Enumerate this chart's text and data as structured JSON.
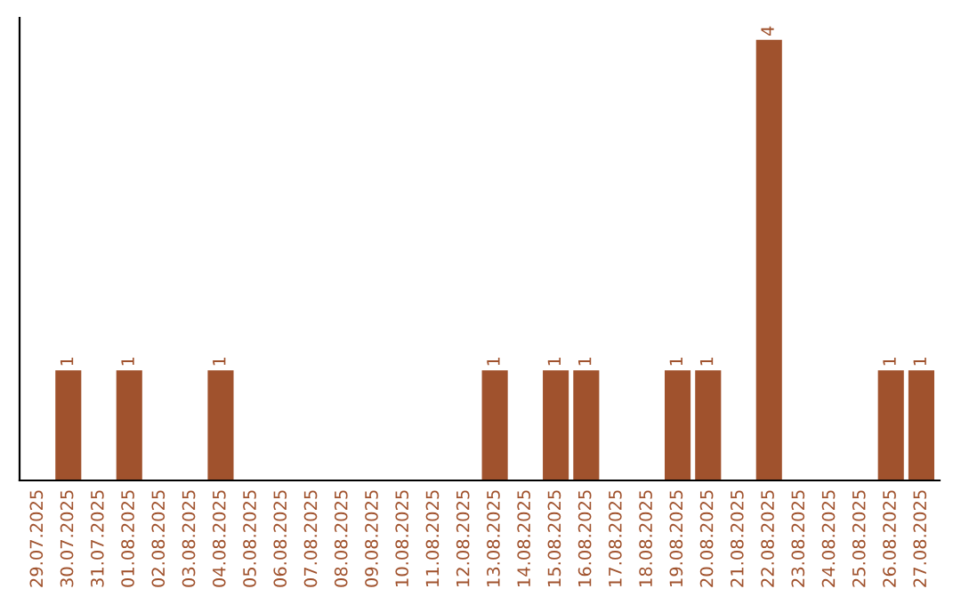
{
  "chart_data": {
    "type": "bar",
    "categories": [
      "29.07.2025",
      "30.07.2025",
      "31.07.2025",
      "01.08.2025",
      "02.08.2025",
      "03.08.2025",
      "04.08.2025",
      "05.08.2025",
      "06.08.2025",
      "07.08.2025",
      "08.08.2025",
      "09.08.2025",
      "10.08.2025",
      "11.08.2025",
      "12.08.2025",
      "13.08.2025",
      "14.08.2025",
      "15.08.2025",
      "16.08.2025",
      "17.08.2025",
      "18.08.2025",
      "19.08.2025",
      "20.08.2025",
      "21.08.2025",
      "22.08.2025",
      "23.08.2025",
      "24.08.2025",
      "25.08.2025",
      "26.08.2025",
      "27.08.2025"
    ],
    "values": [
      0,
      1,
      0,
      1,
      0,
      0,
      1,
      0,
      0,
      0,
      0,
      0,
      0,
      0,
      0,
      1,
      0,
      1,
      1,
      0,
      0,
      1,
      1,
      0,
      4,
      0,
      0,
      0,
      1,
      1
    ],
    "value_labels": [
      null,
      "1",
      null,
      "1",
      null,
      null,
      "1",
      null,
      null,
      null,
      null,
      null,
      null,
      null,
      null,
      "1",
      null,
      "1",
      "1",
      null,
      null,
      "1",
      "1",
      null,
      "4",
      null,
      null,
      null,
      "1",
      "1"
    ],
    "color": "#a0522d",
    "ylim": [
      0,
      4.2
    ],
    "tick_labels": "x",
    "grid": false,
    "legend": false
  }
}
